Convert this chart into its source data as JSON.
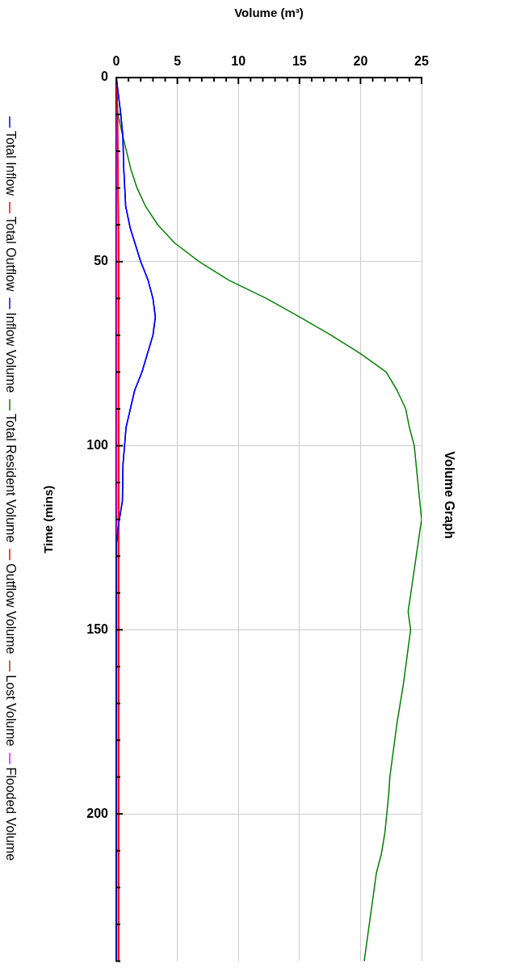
{
  "chart_data": {
    "type": "line",
    "orientation": "horizontal",
    "title": "Volume Graph",
    "xlabel": "Volume (m³)",
    "ylabel": "Time (mins)",
    "xlim": [
      0,
      25
    ],
    "ylim": [
      240,
      0
    ],
    "xticks": [
      0,
      {
        "value": 1,
        "label": null
      },
      {
        "value": 2,
        "label": null
      },
      {
        "value": 3,
        "label": null
      },
      {
        "value": 4,
        "label": null
      },
      5,
      {
        "value": 6,
        "label": null
      },
      {
        "value": 7,
        "label": null
      },
      {
        "value": 8,
        "label": null
      },
      {
        "value": 9,
        "label": null
      },
      10,
      {
        "value": 11,
        "label": null
      },
      {
        "value": 12,
        "label": null
      },
      {
        "value": 13,
        "label": null
      },
      {
        "value": 14,
        "label": null
      },
      15,
      {
        "value": 16,
        "label": null
      },
      {
        "value": 17,
        "label": null
      },
      {
        "value": 18,
        "label": null
      },
      {
        "value": 19,
        "label": null
      },
      20,
      {
        "value": 21,
        "label": null
      },
      {
        "value": 22,
        "label": null
      },
      {
        "value": 23,
        "label": null
      },
      {
        "value": 24,
        "label": null
      },
      25
    ],
    "yticks": [
      0,
      {
        "value": 10,
        "label": null
      },
      {
        "value": 20,
        "label": null
      },
      {
        "value": 30,
        "label": null
      },
      {
        "value": 40,
        "label": null
      },
      50,
      {
        "value": 60,
        "label": null
      },
      {
        "value": 70,
        "label": null
      },
      {
        "value": 80,
        "label": null
      },
      {
        "value": 90,
        "label": null
      },
      100,
      {
        "value": 110,
        "label": null
      },
      {
        "value": 120,
        "label": null
      },
      {
        "value": 130,
        "label": null
      },
      {
        "value": 140,
        "label": null
      },
      150,
      {
        "value": 160,
        "label": null
      },
      {
        "value": 170,
        "label": null
      },
      {
        "value": 180,
        "label": null
      },
      {
        "value": 190,
        "label": null
      },
      200,
      {
        "value": 210,
        "label": null
      },
      {
        "value": 220,
        "label": null
      },
      {
        "value": 230,
        "label": null
      },
      {
        "value": 240,
        "label": null
      }
    ],
    "grid": true,
    "marker": "none",
    "line_style": "solid",
    "legend": "left",
    "series": [
      {
        "name": "Total Inflow",
        "color": "#0000ff",
        "x": [
          0,
          10,
          16,
          24,
          35,
          41,
          50,
          55,
          60,
          65,
          70,
          80,
          85,
          95,
          105,
          115,
          121,
          127,
          240
        ],
        "values": [
          0,
          0.37,
          0.54,
          0.6,
          0.77,
          1.15,
          2.0,
          2.6,
          3.0,
          3.2,
          3.0,
          2.1,
          1.5,
          0.8,
          0.55,
          0.5,
          0.2,
          0,
          0
        ]
      },
      {
        "name": "Total Outflow",
        "color": "#ff0000",
        "x": [
          0,
          10,
          50,
          240
        ],
        "values": [
          0,
          0.1,
          0.2,
          0.2
        ]
      },
      {
        "name": "Inflow Volume",
        "color": "#0000ff",
        "x": [
          0,
          10,
          16,
          24,
          35,
          41,
          50,
          55,
          60,
          65,
          70,
          80,
          85,
          95,
          105,
          115,
          121,
          127,
          240
        ],
        "values": [
          0,
          0.37,
          0.54,
          0.6,
          0.77,
          1.15,
          2.0,
          2.6,
          3.0,
          3.2,
          3.0,
          2.1,
          1.5,
          0.8,
          0.55,
          0.5,
          0.2,
          0,
          0
        ]
      },
      {
        "name": "Total Resident Volume",
        "color": "#008000",
        "x": [
          0,
          10,
          16,
          25,
          30,
          35,
          40,
          45,
          50,
          55,
          60,
          65,
          70,
          75,
          80,
          85,
          90,
          95,
          100,
          120,
          145,
          150,
          165,
          175,
          190,
          195,
          205,
          211,
          216,
          240
        ],
        "values": [
          0,
          0.13,
          0.54,
          1.2,
          1.7,
          2.4,
          3.4,
          4.8,
          6.8,
          9.2,
          12.3,
          15.0,
          17.6,
          20.0,
          22.1,
          23.0,
          23.7,
          24.0,
          24.4,
          25.0,
          23.9,
          24.1,
          23.5,
          23.0,
          22.4,
          22.3,
          22.0,
          21.7,
          21.3,
          20.3
        ]
      },
      {
        "name": "Outflow Volume",
        "color": "#ff0000",
        "x": [
          0,
          10,
          50,
          240
        ],
        "values": [
          0,
          0.1,
          0.2,
          0.2
        ]
      },
      {
        "name": "Lost Volume",
        "color": "#8b4513"
      },
      {
        "name": "Flooded Volume",
        "color": "#ff00ff",
        "x": [
          0,
          10,
          240
        ],
        "values": [
          0,
          0.05,
          0.05
        ]
      }
    ]
  }
}
